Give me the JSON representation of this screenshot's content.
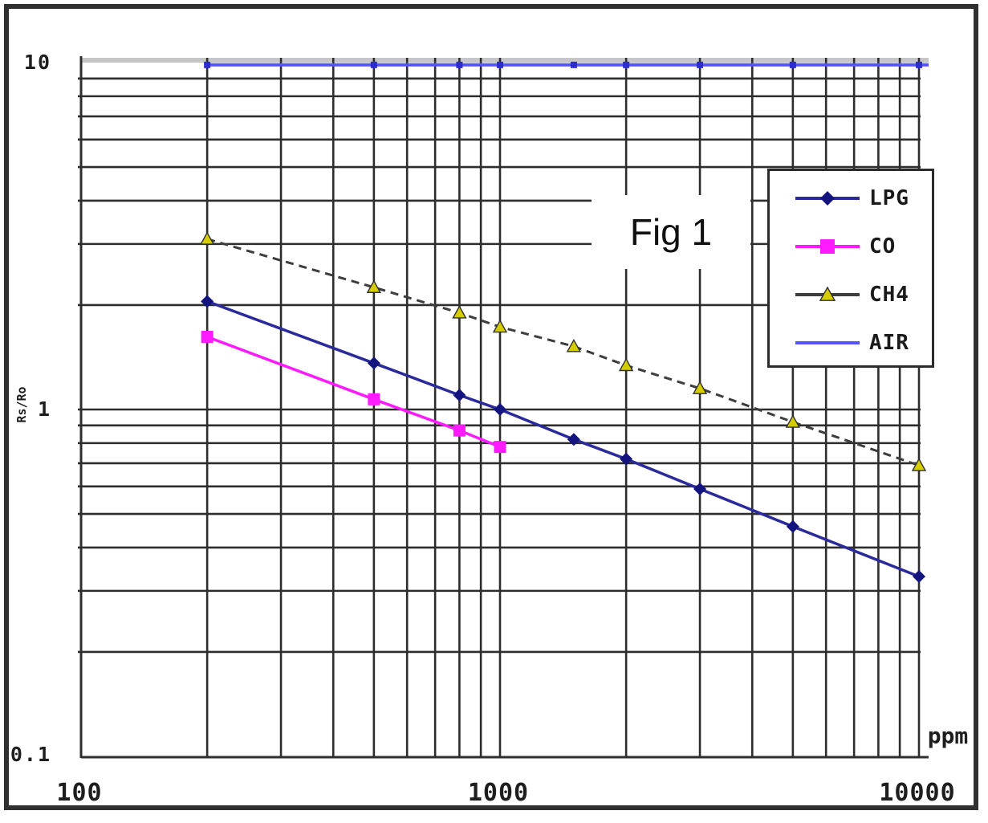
{
  "chart_data": {
    "type": "line",
    "title": "Fig 1",
    "xlabel": "ppm",
    "ylabel": "Rs/Ro",
    "x_scale": "log",
    "y_scale": "log",
    "xlim": [
      100,
      10000
    ],
    "ylim": [
      0.1,
      10
    ],
    "grid": true,
    "legend_position": "upper right",
    "x": [
      200,
      500,
      800,
      1000,
      1500,
      2000,
      3000,
      5000,
      10000
    ],
    "series": [
      {
        "name": "LPG",
        "color": "#2a2a9c",
        "marker": "diamond",
        "marker_color": "#14147e",
        "marker_size": 8,
        "line_width": 3.5,
        "values": [
          2.05,
          1.36,
          1.1,
          1.0,
          0.82,
          0.72,
          0.59,
          0.46,
          0.33
        ]
      },
      {
        "name": "CO",
        "color": "#ff1aff",
        "marker": "square",
        "marker_color": "#ff1aff",
        "marker_size": 7.5,
        "line_width": 3.5,
        "values": [
          1.62,
          1.07,
          0.87,
          0.78,
          null,
          null,
          null,
          null,
          null
        ]
      },
      {
        "name": "CH4",
        "color": "#3d3d3d",
        "marker": "triangle",
        "marker_color": "#d6cd00",
        "marker_size": 8,
        "line_width": 3,
        "dash": "10 7",
        "values": [
          3.1,
          2.25,
          1.9,
          1.73,
          1.52,
          1.34,
          1.15,
          0.92,
          0.69
        ]
      },
      {
        "name": "AIR",
        "color": "#5353ff",
        "marker": "dot",
        "marker_color": "#2d2dcf",
        "marker_size": 4,
        "line_width": 4,
        "extend_right": true,
        "values": [
          9.85,
          9.85,
          9.85,
          9.85,
          9.85,
          9.85,
          9.85,
          9.85,
          9.85
        ]
      }
    ]
  },
  "axes": {
    "y_title": "Rs/Ro",
    "x_unit": "ppm",
    "x_ticks": [
      "100",
      "1000",
      "10000"
    ],
    "y_ticks": [
      "10",
      "1",
      "0.1"
    ]
  },
  "legend": {
    "items": [
      "LPG",
      "CO",
      "CH4",
      "AIR"
    ]
  }
}
